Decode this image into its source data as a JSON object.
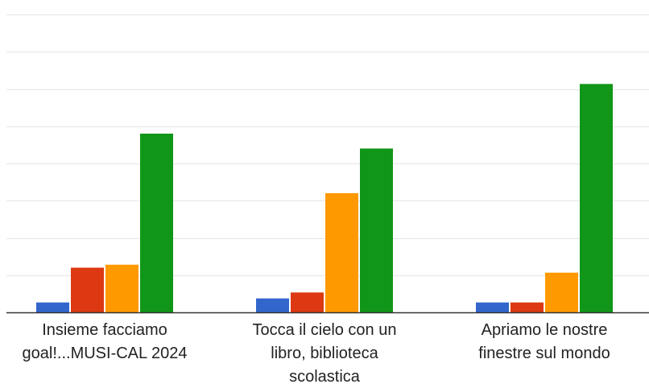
{
  "chart_data": {
    "type": "bar",
    "categories": [
      "Insieme facciamo goal!...MUSI-CAL 2024",
      "Tocca il cielo con un libro, biblioteca scolastica",
      "Apriamo le nostre finestre sul mondo"
    ],
    "category_lines": [
      [
        "Insieme facciamo",
        "goal!...MUSI-CAL 2024"
      ],
      [
        "Tocca il cielo con un",
        "libro, biblioteca",
        "scolastica"
      ],
      [
        "Apriamo le nostre",
        "finestre sul mondo"
      ]
    ],
    "series": [
      {
        "values": [
          1,
          1.4,
          1
        ],
        "color": "#3366cc"
      },
      {
        "values": [
          4.5,
          2,
          1
        ],
        "color": "#dc3912"
      },
      {
        "values": [
          4.8,
          12,
          4
        ],
        "color": "#ff9900"
      },
      {
        "values": [
          18,
          16.5,
          23
        ],
        "color": "#109618"
      }
    ],
    "ylim": [
      0,
      30
    ],
    "grid": true,
    "xlabel": "",
    "ylabel": "",
    "title": ""
  }
}
